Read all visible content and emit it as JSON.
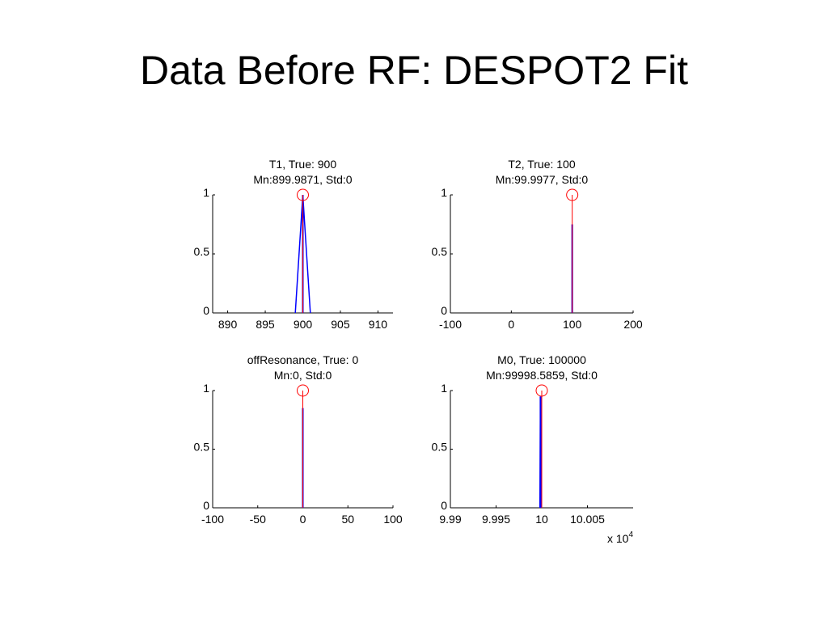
{
  "slide": {
    "title": "Data Before RF: DESPOT2 Fit"
  },
  "colors": {
    "fit": "#0000ff",
    "truth": "#ff0000",
    "axis": "#000000"
  },
  "chart_data": [
    {
      "type": "line",
      "title": "T1, True: 900",
      "subtitle": "Mn:899.9871, Std:0",
      "xlim": [
        888,
        912
      ],
      "ylim": [
        0,
        1
      ],
      "xticks": [
        890,
        895,
        900,
        905,
        910
      ],
      "xtick_labels": [
        "890",
        "895",
        "900",
        "905",
        "910"
      ],
      "yticks": [
        0,
        0.5,
        1
      ],
      "ytick_labels": [
        "0",
        "0.5",
        "1"
      ],
      "exponent_label": "",
      "truth": 900,
      "truth_marker_y": 1,
      "fit_x": [
        899,
        900,
        901
      ],
      "fit_y": [
        0,
        1,
        0
      ]
    },
    {
      "type": "line",
      "title": "T2, True: 100",
      "subtitle": "Mn:99.9977, Std:0",
      "xlim": [
        -100,
        200
      ],
      "ylim": [
        0,
        1
      ],
      "xticks": [
        -100,
        0,
        100,
        200
      ],
      "xtick_labels": [
        "-100",
        "0",
        "100",
        "200"
      ],
      "yticks": [
        0,
        0.5,
        1
      ],
      "ytick_labels": [
        "0",
        "0.5",
        "1"
      ],
      "exponent_label": "",
      "truth": 100,
      "truth_marker_y": 1,
      "fit_x": [
        99.9,
        100,
        100.1
      ],
      "fit_y": [
        0,
        0.75,
        0
      ]
    },
    {
      "type": "line",
      "title": "offResonance, True: 0",
      "subtitle": "Mn:0, Std:0",
      "xlim": [
        -100,
        100
      ],
      "ylim": [
        0,
        1
      ],
      "xticks": [
        -100,
        -50,
        0,
        50,
        100
      ],
      "xtick_labels": [
        "-100",
        "-50",
        "0",
        "50",
        "100"
      ],
      "yticks": [
        0,
        0.5,
        1
      ],
      "ytick_labels": [
        "0",
        "0.5",
        "1"
      ],
      "exponent_label": "",
      "truth": 0,
      "truth_marker_y": 1,
      "fit_x": [
        -0.2,
        0,
        0.2
      ],
      "fit_y": [
        0,
        0.85,
        0
      ]
    },
    {
      "type": "line",
      "title": "M0, True: 100000",
      "subtitle": "Mn:99998.5859, Std:0",
      "xlim": [
        9.99,
        10.01
      ],
      "ylim": [
        0,
        1
      ],
      "xticks": [
        9.99,
        9.995,
        10,
        10.005
      ],
      "xtick_labels": [
        "9.99",
        "9.995",
        "10",
        "10.005"
      ],
      "yticks": [
        0,
        0.5,
        1
      ],
      "ytick_labels": [
        "0",
        "0.5",
        "1"
      ],
      "exponent_label": "x 10",
      "exponent_power": "4",
      "truth": 10,
      "truth_marker_y": 1,
      "fit_x": [
        9.9998,
        9.99986,
        9.99992
      ],
      "fit_y": [
        0,
        0.95,
        0
      ]
    }
  ]
}
